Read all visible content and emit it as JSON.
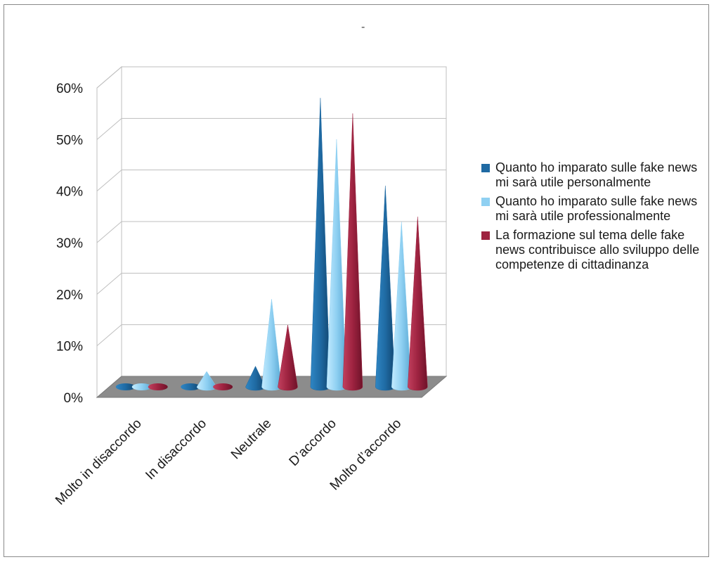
{
  "title": "-",
  "colors": {
    "series1": "#1f6aa3",
    "series2": "#8fd0f2",
    "series3": "#9e2340",
    "grid": "#bfbfbf",
    "floor": "#8c8c8c"
  },
  "chart_data": {
    "type": "bar",
    "bar_shape": "cone-3d",
    "title": "-",
    "xlabel": "",
    "ylabel": "",
    "ylim": [
      0,
      60
    ],
    "y_ticks": [
      "0%",
      "10%",
      "20%",
      "30%",
      "40%",
      "50%",
      "60%"
    ],
    "grid": true,
    "legend_position": "right",
    "categories": [
      "Molto in disaccordo",
      "In disaccordo",
      "Neutrale",
      "D’accordo",
      "Molto d’accordo"
    ],
    "series": [
      {
        "name": "Quanto ho imparato sulle fake news mi sarà utile personalmente",
        "color": "#1f6aa3",
        "values": [
          0,
          0,
          4,
          56,
          39
        ]
      },
      {
        "name": "Quanto ho imparato sulle fake news mi sarà utile professionalmente",
        "color": "#8fd0f2",
        "values": [
          0,
          3,
          17,
          48,
          32
        ]
      },
      {
        "name": "La formazione sul tema delle fake news contribuisce allo sviluppo delle competenze di cittadinanza",
        "color": "#9e2340",
        "values": [
          0,
          0,
          12,
          53,
          33
        ]
      }
    ]
  }
}
